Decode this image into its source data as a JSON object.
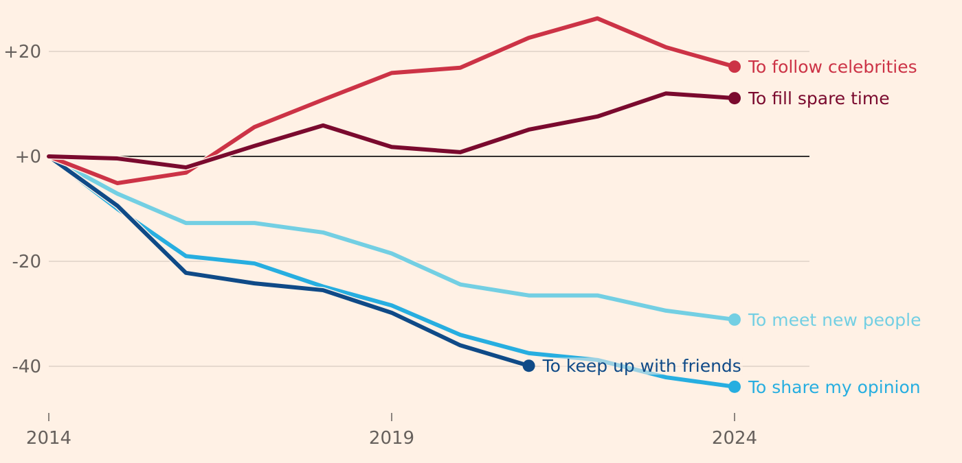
{
  "chart_data": {
    "type": "line",
    "title": "",
    "xlabel": "",
    "ylabel": "",
    "x": [
      2014,
      2015,
      2016,
      2017,
      2018,
      2019,
      2020,
      2021,
      2022,
      2023,
      2024
    ],
    "xlim": [
      2014,
      2025.1
    ],
    "ylim": [
      -48,
      30
    ],
    "yticks": [
      20,
      0,
      -20,
      -40
    ],
    "ytick_labels": [
      "+20",
      "+0",
      "-20",
      "-40"
    ],
    "xticks": [
      2014,
      2019,
      2024
    ],
    "xtick_labels": [
      "2014",
      "2019",
      "2024"
    ],
    "grid": true,
    "legend": "inline-end-labels",
    "series": [
      {
        "name": "To follow celebrities",
        "color": "#CC3346",
        "values": [
          0,
          -5.1,
          -3.1,
          5.6,
          10.8,
          15.9,
          16.9,
          22.6,
          26.3,
          20.8,
          17.1
        ]
      },
      {
        "name": "To fill spare time",
        "color": "#7A0A2E",
        "values": [
          0,
          -0.4,
          -2.1,
          2.0,
          5.9,
          1.8,
          0.8,
          5.1,
          7.6,
          12.0,
          11.1
        ]
      },
      {
        "name": "To meet new people",
        "color": "#73CFE3",
        "values": [
          0,
          -7.1,
          -12.7,
          -12.7,
          -14.5,
          -18.5,
          -24.4,
          -26.5,
          -26.5,
          -29.4,
          -31.1
        ]
      },
      {
        "name": "To share my opinion",
        "color": "#27AEE0",
        "values": [
          0,
          -10.0,
          -19.0,
          -20.4,
          -24.8,
          -28.4,
          -34.0,
          -37.5,
          -38.8,
          -42.1,
          -43.9
        ]
      },
      {
        "name": "To keep up with friends",
        "color": "#0F4A87",
        "values": [
          0,
          -9.4,
          -22.2,
          -24.2,
          -25.5,
          -29.8,
          -36.0,
          -39.9,
          null,
          null,
          null
        ]
      }
    ]
  }
}
